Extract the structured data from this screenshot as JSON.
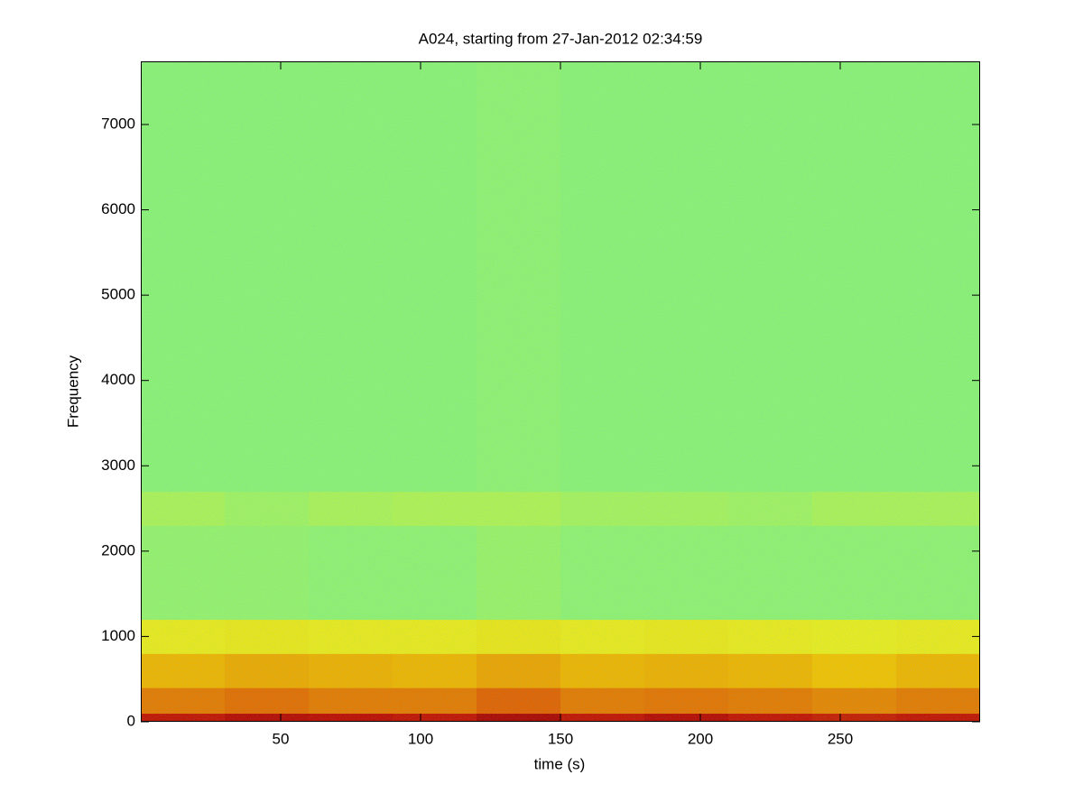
{
  "chart_data": {
    "type": "spectrogram",
    "title": "A024, starting from 27-Jan-2012 02:34:59",
    "xlabel": "time (s)",
    "ylabel": "Frequency",
    "xlim": [
      0,
      300
    ],
    "ylim": [
      0,
      7740
    ],
    "xticks": [
      50,
      100,
      150,
      200,
      250
    ],
    "yticks": [
      0,
      1000,
      2000,
      3000,
      4000,
      5000,
      6000,
      7000
    ],
    "xbins": [
      0,
      30,
      60,
      90,
      120,
      150,
      180,
      210,
      240,
      270,
      300
    ],
    "ybins": [
      0,
      100,
      400,
      800,
      1200,
      2300,
      2700,
      7740
    ],
    "clim": [
      0,
      1
    ],
    "colormap": [
      "#40e8a0",
      "#90f070",
      "#e8f020",
      "#f0c000",
      "#e06000",
      "#c01000",
      "#900000"
    ],
    "values": [
      [
        0.82,
        0.86,
        0.84,
        0.82,
        0.9,
        0.82,
        0.86,
        0.82,
        0.8,
        0.82
      ],
      [
        0.62,
        0.64,
        0.62,
        0.62,
        0.66,
        0.62,
        0.63,
        0.62,
        0.6,
        0.62
      ],
      [
        0.52,
        0.54,
        0.53,
        0.52,
        0.55,
        0.52,
        0.53,
        0.52,
        0.5,
        0.52
      ],
      [
        0.36,
        0.37,
        0.36,
        0.36,
        0.38,
        0.36,
        0.37,
        0.36,
        0.35,
        0.36
      ],
      [
        0.18,
        0.18,
        0.17,
        0.17,
        0.19,
        0.17,
        0.17,
        0.17,
        0.17,
        0.17
      ],
      [
        0.22,
        0.2,
        0.22,
        0.23,
        0.23,
        0.21,
        0.21,
        0.2,
        0.22,
        0.22
      ],
      [
        0.16,
        0.16,
        0.16,
        0.16,
        0.17,
        0.16,
        0.16,
        0.16,
        0.16,
        0.16
      ]
    ]
  }
}
